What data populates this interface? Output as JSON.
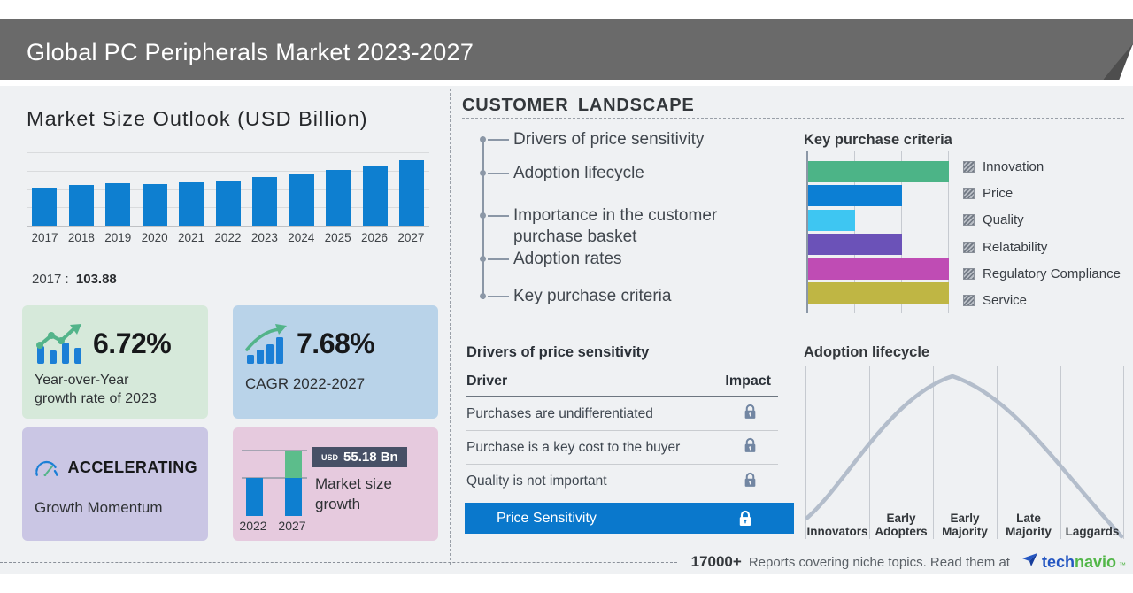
{
  "header": {
    "title": "Global PC Peripherals Market 2023-2027"
  },
  "colors": {
    "header_bg": "#6a6a6a",
    "body_bg": "#eff1f3",
    "chart_blue": "#0e7fd0",
    "card_green_bg": "#d6e9da",
    "card_blue_bg": "#b9d3e9",
    "card_purple_bg": "#cac6e4",
    "card_pink_bg": "#e6cade",
    "badge_bg": "#475066",
    "highlight_blue": "#0a78cc",
    "icon_green": "#53b48a",
    "lock_gray": "#7286a2",
    "curve_gray": "#b3bdcb",
    "brand_blue": "#2456c2",
    "brand_green": "#52b648"
  },
  "market_outlook": {
    "title": "Market Size Outlook (USD Billion)",
    "note_year": "2017",
    "note_colon": ":",
    "note_value": "103.88"
  },
  "chart_data": [
    {
      "id": "market_size_outlook",
      "type": "bar",
      "title": "Market Size Outlook (USD Billion)",
      "ylabel": "USD Billion",
      "categories": [
        "2017",
        "2018",
        "2019",
        "2020",
        "2021",
        "2022",
        "2023",
        "2024",
        "2025",
        "2026",
        "2027"
      ],
      "values": [
        103.88,
        110.3,
        115.9,
        113.5,
        117.6,
        123.2,
        131.5,
        139.9,
        151.9,
        163.9,
        178.4
      ],
      "annotation": "2017 : 103.88",
      "bar_color": "#0e7fd0",
      "ylim": [
        0,
        200
      ],
      "grid": true
    },
    {
      "id": "key_purchase_criteria",
      "type": "bar",
      "orientation": "horizontal",
      "title": "Key purchase criteria",
      "categories": [
        "Innovation",
        "Price",
        "Quality",
        "Relatability",
        "Regulatory Compliance",
        "Service"
      ],
      "values": [
        3,
        2,
        1,
        2,
        3,
        3
      ],
      "xlim": [
        0,
        3
      ],
      "grid": true,
      "legend_position": "right",
      "colors": [
        "#4cb487",
        "#0c7fd4",
        "#3ec6f2",
        "#6b52b8",
        "#bf4cb4",
        "#bfb644"
      ]
    },
    {
      "id": "market_size_growth",
      "type": "bar",
      "title": "Market size growth",
      "categories": [
        "2022",
        "2027"
      ],
      "values": [
        123.2,
        178.4
      ],
      "delta_label": "USD 55.18 Bn",
      "bar_color": "#0e7fd0",
      "increment_color": "#5cbd8b"
    },
    {
      "id": "adoption_lifecycle",
      "type": "area",
      "title": "Adoption lifecycle",
      "categories": [
        "Innovators",
        "Early Adopters",
        "Early Majority",
        "Late Majority",
        "Laggards"
      ],
      "description": "bell curve of adoption across adopter segments",
      "curve_color": "#b3bdcb"
    }
  ],
  "cards": {
    "yoy": {
      "value": "6.72%",
      "caption_line1": "Year-over-Year",
      "caption_line2": "growth rate of 2023"
    },
    "cagr": {
      "value": "7.68%",
      "caption": "CAGR 2022-2027"
    },
    "momentum": {
      "title": "ACCELERATING",
      "caption": "Growth Momentum"
    },
    "growth": {
      "currency": "USD",
      "amount": "55.18 Bn",
      "caption": "Market size growth",
      "year_start": "2022",
      "year_end": "2027"
    }
  },
  "customer_landscape": {
    "title": "CUSTOMER LANDSCAPE",
    "items": [
      "Drivers of price sensitivity",
      "Adoption lifecycle",
      "Importance in the customer purchase basket",
      "Adoption rates",
      "Key purchase criteria"
    ]
  },
  "kpc": {
    "title": "Key purchase criteria"
  },
  "drivers_table": {
    "title": "Drivers of price sensitivity",
    "col_driver": "Driver",
    "col_impact": "Impact",
    "rows": [
      "Purchases are undifferentiated",
      "Purchase is a key cost to the buyer",
      "Quality is not important"
    ],
    "highlight_label": "Price Sensitivity"
  },
  "adoption_lifecycle": {
    "title": "Adoption lifecycle",
    "stages": [
      "Innovators",
      "Early Adopters",
      "Early Majority",
      "Late Majority",
      "Laggards"
    ]
  },
  "footer": {
    "count": "17000+",
    "message": "Reports covering niche topics. Read them at",
    "brand_tech": "tech",
    "brand_navio": "navio",
    "tm": "™"
  }
}
